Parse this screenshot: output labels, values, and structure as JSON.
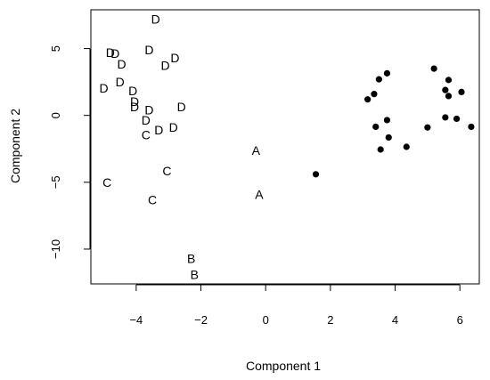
{
  "chart_data": {
    "type": "scatter",
    "title": "",
    "xlabel": "Component 1",
    "ylabel": "Component 2",
    "xlim": [
      -5.4,
      6.6
    ],
    "ylim": [
      -12.6,
      7.9
    ],
    "xticks": [
      -4,
      -2,
      0,
      2,
      4,
      6
    ],
    "yticks": [
      -10,
      -5,
      0,
      5
    ],
    "grid": false,
    "colors": {
      "axis": "#000000",
      "points": "#000000"
    },
    "series": [
      {
        "marker": "label",
        "points": [
          {
            "x": -3.4,
            "y": 7.2,
            "label": "D"
          },
          {
            "x": -4.8,
            "y": 4.7,
            "label": "D"
          },
          {
            "x": -4.65,
            "y": 4.65,
            "label": "D"
          },
          {
            "x": -3.6,
            "y": 4.9,
            "label": "D"
          },
          {
            "x": -2.8,
            "y": 4.3,
            "label": "D"
          },
          {
            "x": -3.1,
            "y": 3.75,
            "label": "D"
          },
          {
            "x": -4.45,
            "y": 3.85,
            "label": "D"
          },
          {
            "x": -4.5,
            "y": 2.5,
            "label": "D"
          },
          {
            "x": -5.0,
            "y": 2.05,
            "label": "D"
          },
          {
            "x": -4.1,
            "y": 1.85,
            "label": "D"
          },
          {
            "x": -4.05,
            "y": 1.05,
            "label": "D"
          },
          {
            "x": -4.05,
            "y": 0.65,
            "label": "D"
          },
          {
            "x": -3.6,
            "y": 0.4,
            "label": "D"
          },
          {
            "x": -3.7,
            "y": -0.35,
            "label": "D"
          },
          {
            "x": -2.6,
            "y": 0.65,
            "label": "D"
          },
          {
            "x": -2.85,
            "y": -0.9,
            "label": "D"
          },
          {
            "x": -3.3,
            "y": -1.1,
            "label": "D"
          },
          {
            "x": -3.7,
            "y": -1.45,
            "label": "C"
          },
          {
            "x": -3.05,
            "y": -4.15,
            "label": "C"
          },
          {
            "x": -4.9,
            "y": -5.0,
            "label": "C"
          },
          {
            "x": -3.5,
            "y": -6.3,
            "label": "C"
          },
          {
            "x": -0.3,
            "y": -2.6,
            "label": "A"
          },
          {
            "x": -0.2,
            "y": -5.9,
            "label": "A"
          },
          {
            "x": -2.3,
            "y": -10.7,
            "label": "B"
          },
          {
            "x": -2.2,
            "y": -11.9,
            "label": "B"
          }
        ]
      },
      {
        "marker": "dot",
        "points": [
          {
            "x": 1.55,
            "y": -4.4
          },
          {
            "x": 3.15,
            "y": 1.2
          },
          {
            "x": 3.35,
            "y": 1.6
          },
          {
            "x": 3.5,
            "y": 2.7
          },
          {
            "x": 3.75,
            "y": 3.15
          },
          {
            "x": 3.4,
            "y": -0.85
          },
          {
            "x": 3.75,
            "y": -0.35
          },
          {
            "x": 3.8,
            "y": -1.65
          },
          {
            "x": 3.55,
            "y": -2.55
          },
          {
            "x": 4.35,
            "y": -2.35
          },
          {
            "x": 5.0,
            "y": -0.9
          },
          {
            "x": 5.2,
            "y": 3.5
          },
          {
            "x": 5.55,
            "y": 1.9
          },
          {
            "x": 5.65,
            "y": 2.65
          },
          {
            "x": 5.65,
            "y": 1.45
          },
          {
            "x": 5.55,
            "y": -0.15
          },
          {
            "x": 5.9,
            "y": -0.25
          },
          {
            "x": 6.05,
            "y": 1.75
          },
          {
            "x": 6.35,
            "y": -0.85
          }
        ]
      }
    ]
  }
}
